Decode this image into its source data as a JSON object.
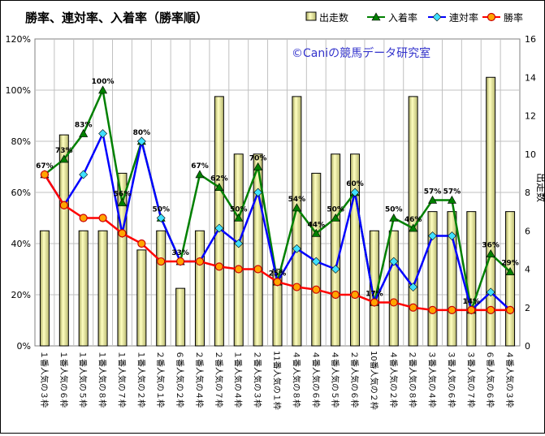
{
  "chart_data": {
    "type": "bar+line",
    "title": "勝率、連対率、入着率（勝率順）",
    "watermark": "©Caniの競馬データ研究室",
    "y2label": "出走数",
    "ylim": [
      0,
      1.2
    ],
    "y2lim": [
      0,
      16
    ],
    "yticks": [
      "0%",
      "20%",
      "40%",
      "60%",
      "80%",
      "100%",
      "120%"
    ],
    "y2ticks": [
      "0",
      "2",
      "4",
      "6",
      "8",
      "10",
      "12",
      "14",
      "16"
    ],
    "grid": true,
    "legend_position": "top-right",
    "categories": [
      "１番人気の３枠",
      "１番人気の６枠",
      "１番人気の５枠",
      "１番人気の８枠",
      "１番人気の７枠",
      "１番人気の２枠",
      "２番人気の１枠",
      "６番人気の２枠",
      "２番人気の４枠",
      "２番人気の７枠",
      "１番人気の４枠",
      "２番人気の３枠",
      "11番人気の１枠",
      "４番人気の８枠",
      "４番人気の６枠",
      "４番人気の５枠",
      "２番人気の６枠",
      "10番人気の２枠",
      "４番人気の２枠",
      "２番人気の８枠",
      "３番人気の４枠",
      "３番人気の６枠",
      "３番人気の７枠",
      "６番人気の６枠",
      "４番人気の３枠"
    ],
    "series": [
      {
        "name": "出走数",
        "kind": "bar",
        "axis": "y2",
        "color": "#f0f0a0",
        "values": [
          6,
          11,
          6,
          6,
          9,
          5,
          6,
          3,
          6,
          13,
          10,
          10,
          4,
          13,
          9,
          10,
          10,
          6,
          6,
          13,
          7,
          7,
          7,
          14,
          7
        ]
      },
      {
        "name": "入着率",
        "kind": "line",
        "axis": "y",
        "color": "#008000",
        "marker": "triangle",
        "values": [
          0.67,
          0.73,
          0.83,
          1.0,
          0.56,
          0.8,
          0.5,
          0.33,
          0.67,
          0.62,
          0.5,
          0.7,
          0.25,
          0.54,
          0.44,
          0.5,
          0.6,
          0.17,
          0.5,
          0.46,
          0.57,
          0.57,
          0.14,
          0.36,
          0.29
        ],
        "labels": [
          "67%",
          "73%",
          "83%",
          "100%",
          "56%",
          "80%",
          "50%",
          "33%",
          "67%",
          "62%",
          "50%",
          "70%",
          "25%",
          "54%",
          "44%",
          "50%",
          "60%",
          "17%",
          "50%",
          "46%",
          "57%",
          "57%",
          "14%",
          "36%",
          "29%"
        ]
      },
      {
        "name": "連対率",
        "kind": "line",
        "axis": "y",
        "color": "#0000ff",
        "marker": "diamond",
        "values": [
          0.67,
          0.55,
          0.67,
          0.83,
          0.44,
          0.8,
          0.5,
          0.33,
          0.33,
          0.46,
          0.4,
          0.6,
          0.25,
          0.38,
          0.33,
          0.3,
          0.6,
          0.17,
          0.33,
          0.23,
          0.43,
          0.43,
          0.14,
          0.21,
          0.14
        ]
      },
      {
        "name": "勝率",
        "kind": "line",
        "axis": "y",
        "color": "#ff0000",
        "marker": "circle",
        "values": [
          0.67,
          0.55,
          0.5,
          0.5,
          0.44,
          0.4,
          0.33,
          0.33,
          0.33,
          0.31,
          0.3,
          0.3,
          0.25,
          0.23,
          0.22,
          0.2,
          0.2,
          0.17,
          0.17,
          0.15,
          0.14,
          0.14,
          0.14,
          0.14,
          0.14
        ]
      }
    ]
  }
}
